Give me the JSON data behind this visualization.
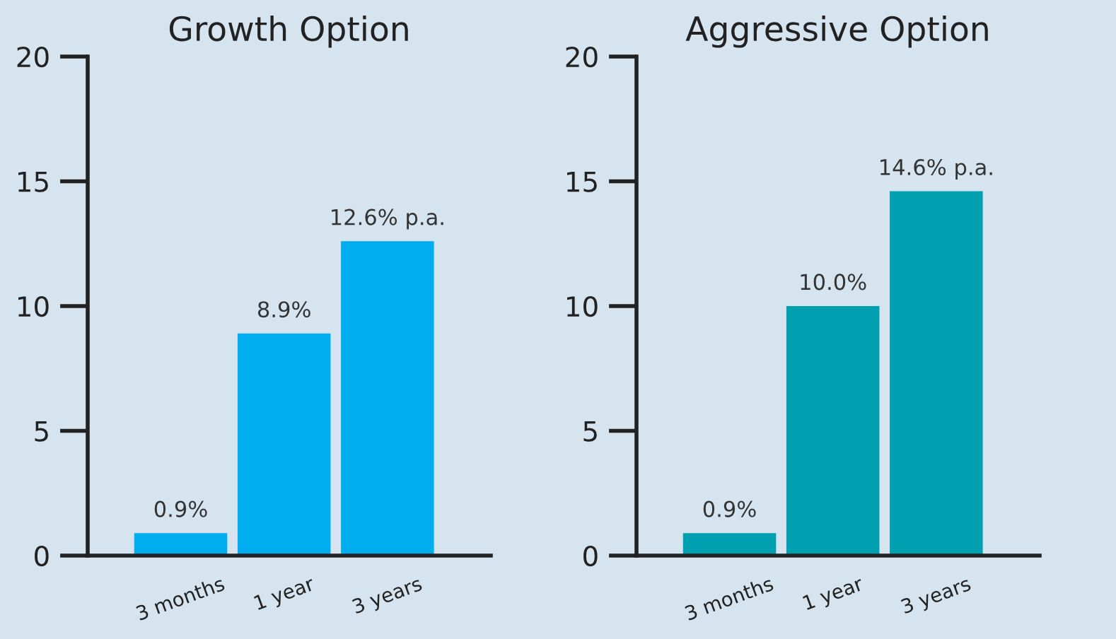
{
  "chart_data": [
    {
      "type": "bar",
      "title": "Growth Option",
      "categories": [
        "3 months",
        "1 year",
        "3 years"
      ],
      "values": [
        0.9,
        8.9,
        12.6
      ],
      "color": "#00aeef",
      "value_labels": [
        "0.9%",
        "8.9%",
        "12.6% p.a."
      ],
      "ylim": [
        0,
        20
      ],
      "yticks": [
        0,
        5,
        10,
        15,
        20
      ],
      "grid": false,
      "legend": false
    },
    {
      "type": "bar",
      "title": "Aggressive Option",
      "categories": [
        "3 months",
        "1 year",
        "3 years"
      ],
      "values": [
        0.9,
        10.0,
        14.6
      ],
      "color": "#00a0b0",
      "value_labels": [
        "0.9%",
        "10.0%",
        "14.6% p.a."
      ],
      "ylim": [
        0,
        20
      ],
      "yticks": [
        0,
        5,
        10,
        15,
        20
      ],
      "grid": false,
      "legend": false
    }
  ]
}
